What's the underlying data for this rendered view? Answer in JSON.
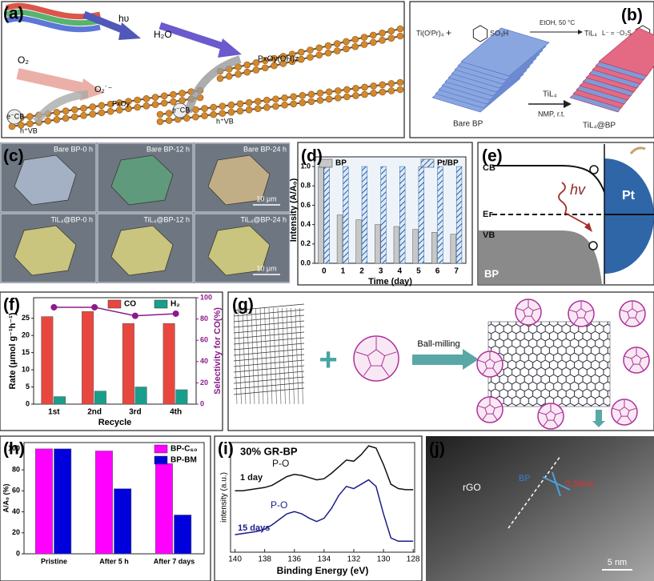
{
  "panel_labels": [
    "(a)",
    "(b)",
    "(c)",
    "(d)",
    "(e)",
    "(f)",
    "(g)",
    "(h)",
    "(i)",
    "(j)"
  ],
  "a": {
    "texts": [
      "hυ",
      "H₂O",
      "O₂",
      "O₂˙⁻",
      "PxOy",
      "PxOy(OH)z",
      "e⁻CB",
      "h⁺VB",
      "e⁻CB",
      "h⁺VB"
    ]
  },
  "b": {
    "texts": [
      "Ti(OⁱPr)₄",
      "+",
      "SO₃H",
      "EtOH, 50 °C",
      "TiL₄",
      "L⁻ = ⁻O₃S",
      "TiL₄",
      "NMP, r.t.",
      "Bare BP",
      "TiL₄@BP"
    ]
  },
  "c": {
    "captions": [
      "Bare BP-0 h",
      "Bare BP-12 h",
      "Bare BP-24 h",
      "TiL₄@BP-0 h",
      "TiL₄@BP-12 h",
      "TiL₄@BP-24 h"
    ],
    "scale_bars": [
      "10 μm",
      "10 μm"
    ]
  },
  "e": {
    "texts": [
      "CB",
      "Eꜰ",
      "VB",
      "hv",
      "Pt",
      "BP"
    ]
  },
  "g": {
    "texts": [
      "+",
      "Ball-milling"
    ]
  },
  "j": {
    "texts": [
      "rGO",
      "BP",
      "0.26nm",
      "5 nm"
    ]
  },
  "chart_data": [
    {
      "type": "bar",
      "xlabel": "Time (day)",
      "ylabel": "Intensity (A/A₀)",
      "categories": [
        "0",
        "1",
        "2",
        "3",
        "4",
        "5",
        "6",
        "7"
      ],
      "series": [
        {
          "name": "BP",
          "color": "#c8c8c8",
          "values": [
            1.0,
            0.5,
            0.45,
            0.4,
            0.38,
            0.35,
            0.32,
            0.3
          ]
        },
        {
          "name": "Pt/BP",
          "color": "#1f5fa8",
          "pattern": "hatch",
          "values": [
            1.0,
            1.0,
            1.0,
            1.0,
            1.0,
            1.0,
            1.0,
            1.0
          ]
        }
      ],
      "ylim": [
        0,
        1.1
      ],
      "yticks": [
        {
          "value": 0,
          "label": "0.0"
        },
        0.2,
        0.4,
        0.6,
        0.8,
        {
          "value": 1,
          "label": "1.0"
        }
      ],
      "legend": "top"
    },
    {
      "type": "bar",
      "xlabel": "Recycle",
      "ylabel": "Rate (μmol g⁻¹h⁻¹)",
      "y2label": "Selectivity for CO(%)",
      "categories": [
        "1st",
        "2nd",
        "3rd",
        "4th"
      ],
      "series": [
        {
          "name": "CO",
          "color": "#e8473f",
          "values": [
            25.5,
            27,
            23.5,
            23.5
          ]
        },
        {
          "name": "H₂",
          "color": "#1a9e8c",
          "values": [
            2.2,
            3.8,
            5,
            4.2
          ]
        },
        {
          "type": "line",
          "axis": "y2",
          "color": "#8b1a8b",
          "values": [
            91,
            91,
            83,
            85
          ]
        }
      ],
      "ylim": [
        0,
        31
      ],
      "yticks": [
        0,
        5,
        10,
        15,
        20,
        25
      ],
      "y2lim": [
        0,
        100
      ],
      "y2ticks": [
        0,
        20,
        40,
        60,
        80,
        100
      ],
      "legend": "top right"
    },
    {
      "type": "bar",
      "ylabel": "A/A₀ (%)",
      "categories": [
        "Pristine",
        "After 5 h",
        "After 7 days"
      ],
      "series": [
        {
          "name": "BP-C₆₀",
          "color": "#ff00ff",
          "values": [
            100,
            98,
            86
          ]
        },
        {
          "name": "BP-BM",
          "color": "#0000dd",
          "values": [
            100,
            62,
            37
          ]
        }
      ],
      "ylim": [
        0,
        106
      ],
      "yticks": [
        0,
        20,
        40,
        60,
        80,
        100
      ],
      "legend": "upper right"
    },
    {
      "type": "line",
      "title": "30% GR-BP",
      "xlabel": "Binding Energy (eV)",
      "ylabel": "intensity (a.u.)",
      "x": [
        140,
        139.5,
        139,
        138.5,
        138,
        137.5,
        137,
        136.5,
        136,
        135.5,
        135,
        134.5,
        134,
        133.5,
        133,
        132.5,
        132,
        131.5,
        131,
        130.5,
        130,
        129.5,
        129,
        128.5,
        128
      ],
      "series": [
        {
          "name": "1 day",
          "color": "#111111",
          "values": [
            5.6,
            5.6,
            5.7,
            5.8,
            5.9,
            6.1,
            6.5,
            6.9,
            7.1,
            7.0,
            6.8,
            6.6,
            6.7,
            7.2,
            7.8,
            8.4,
            8.3,
            8.9,
            9.7,
            9.5,
            8.0,
            6.2,
            5.8,
            5.7,
            5.7
          ]
        },
        {
          "name": "15 days",
          "color": "#1c1c8c",
          "values": [
            1.6,
            1.7,
            1.8,
            1.9,
            2.1,
            2.5,
            3.0,
            3.5,
            3.7,
            3.5,
            3.1,
            2.8,
            3.1,
            4.0,
            5.2,
            6.0,
            5.8,
            6.2,
            6.6,
            6.0,
            3.5,
            1.3,
            1.0,
            1.0,
            1.0
          ]
        }
      ],
      "annotations": [
        "P-O",
        "P-O"
      ],
      "xlim": [
        140.3,
        127.9
      ],
      "xticks": [
        140,
        138,
        136,
        134,
        132,
        130,
        128
      ],
      "ylim": [
        0,
        10
      ]
    }
  ]
}
